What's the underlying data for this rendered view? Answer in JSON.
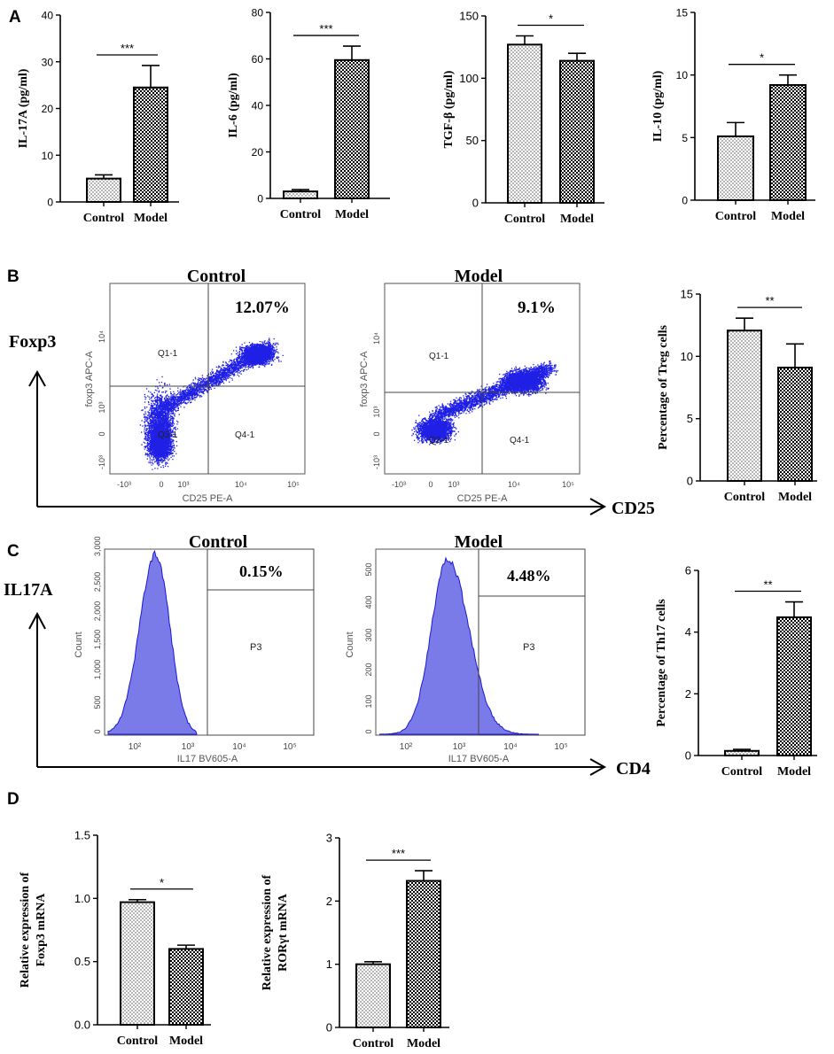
{
  "panel_labels": [
    "A",
    "B",
    "C",
    "D"
  ],
  "colors": {
    "axis": "#000000",
    "flow_dots": "#1f1fe6",
    "histogram_fill": "#7a7ae8",
    "histogram_line": "#1a1ad0",
    "pattern_model": "#000000",
    "pattern_control": "#000000"
  },
  "chart_data": [
    {
      "id": "il17a",
      "type": "bar",
      "categories": [
        "Control",
        "Model"
      ],
      "values": [
        5.0,
        24.5
      ],
      "errors": [
        0.8,
        4.7
      ],
      "ylabel": "IL-17A (pg/ml)",
      "ylim": [
        0,
        40
      ],
      "yticks": [
        "0",
        "10",
        "20",
        "30",
        "40"
      ],
      "significance": "***"
    },
    {
      "id": "il6",
      "type": "bar",
      "categories": [
        "Control",
        "Model"
      ],
      "values": [
        3.0,
        59.5
      ],
      "errors": [
        0.8,
        6.0
      ],
      "ylabel": "IL-6 (pg/ml)",
      "ylim": [
        0,
        80
      ],
      "yticks": [
        "0",
        "20",
        "40",
        "60",
        "80"
      ],
      "significance": "***"
    },
    {
      "id": "tgfb",
      "type": "bar",
      "categories": [
        "Control",
        "Model"
      ],
      "values": [
        127,
        114
      ],
      "errors": [
        7,
        6
      ],
      "ylabel": "TGF-β (pg/ml)",
      "ylim": [
        0,
        150
      ],
      "yticks": [
        "0",
        "50",
        "100",
        "150"
      ],
      "significance": "*"
    },
    {
      "id": "il10",
      "type": "bar",
      "categories": [
        "Control",
        "Model"
      ],
      "values": [
        5.1,
        9.2
      ],
      "errors": [
        1.1,
        0.8
      ],
      "ylabel": "IL-10 (pg/ml)",
      "ylim": [
        0,
        15
      ],
      "yticks": [
        "0",
        "5",
        "10",
        "15"
      ],
      "significance": "*"
    },
    {
      "id": "treg",
      "type": "bar",
      "categories": [
        "Control",
        "Model"
      ],
      "values": [
        12.07,
        9.1
      ],
      "errors": [
        1.0,
        1.9
      ],
      "ylabel": "Percentage of Treg cells",
      "ylim": [
        0,
        15
      ],
      "yticks": [
        "0",
        "5",
        "10",
        "15"
      ],
      "significance": "**"
    },
    {
      "id": "th17",
      "type": "bar",
      "categories": [
        "Control",
        "Model"
      ],
      "values": [
        0.15,
        4.48
      ],
      "errors": [
        0.05,
        0.5
      ],
      "ylabel": "Percentage of Th17 cells",
      "ylim": [
        0,
        6
      ],
      "yticks": [
        "0",
        "2",
        "4",
        "6"
      ],
      "significance": "**"
    },
    {
      "id": "foxp3mrna",
      "type": "bar",
      "categories": [
        "Control",
        "Model"
      ],
      "values": [
        0.97,
        0.6
      ],
      "errors": [
        0.02,
        0.03
      ],
      "ylabel": "Relative expression of Foxp3 mRNA",
      "ylabel_lines": [
        "Relative expression of",
        "Foxp3 mRNA"
      ],
      "ylim": [
        0,
        1.5
      ],
      "yticks": [
        "0.0",
        "0.5",
        "1.0",
        "1.5"
      ],
      "significance": "*"
    },
    {
      "id": "rorgt",
      "type": "bar",
      "categories": [
        "Control",
        "Model"
      ],
      "values": [
        1.0,
        2.32
      ],
      "errors": [
        0.04,
        0.16
      ],
      "ylabel": "Relative expression of RORγt mRNA",
      "ylabel_lines": [
        "Relative expression of",
        "RORγt mRNA"
      ],
      "ylim": [
        0,
        3
      ],
      "yticks": [
        "0",
        "1",
        "2",
        "3"
      ],
      "significance": "***"
    }
  ],
  "flow_B": {
    "y_marker": "Foxp3",
    "x_marker": "CD25",
    "plots": [
      {
        "title": "Control",
        "percentage": "12.07%",
        "q_labels": [
          "Q1-1",
          "Q3-1",
          "Q4-1"
        ],
        "xlabel": "CD25 PE-A",
        "ylabel": "foxp3 APC-A",
        "xticks": [
          "-10³",
          "0",
          "10³",
          "10⁴",
          "10⁵"
        ],
        "yticks": [
          "10⁴",
          "10³",
          "0",
          "-10³"
        ]
      },
      {
        "title": "Model",
        "percentage": "9.1%",
        "q_labels": [
          "Q1-1",
          "Q3-1",
          "Q4-1"
        ],
        "xlabel": "CD25 PE-A",
        "ylabel": "foxp3 APC-A",
        "xticks": [
          "-10³",
          "0",
          "10³",
          "10⁴",
          "10⁵"
        ],
        "yticks": [
          "10⁴",
          "10³",
          "0",
          "-10³"
        ]
      }
    ]
  },
  "flow_C": {
    "y_marker": "IL17A",
    "x_marker": "CD4",
    "plots": [
      {
        "title": "Control",
        "percentage": "0.15%",
        "gate": "P3",
        "xlabel": "IL17 BV605-A",
        "ylabel": "Count",
        "xticks": [
          "10²",
          "10³",
          "10⁴",
          "10⁵"
        ],
        "yticks": [
          "0",
          "500",
          "1,000",
          "1,500",
          "2,000",
          "2,500",
          "3,000"
        ]
      },
      {
        "title": "Model",
        "percentage": "4.48%",
        "gate": "P3",
        "xlabel": "IL17 BV605-A",
        "ylabel": "Count",
        "xticks": [
          "10²",
          "10³",
          "10⁴",
          "10⁵"
        ],
        "yticks": [
          "0",
          "100",
          "200",
          "300",
          "400",
          "500"
        ]
      }
    ]
  }
}
